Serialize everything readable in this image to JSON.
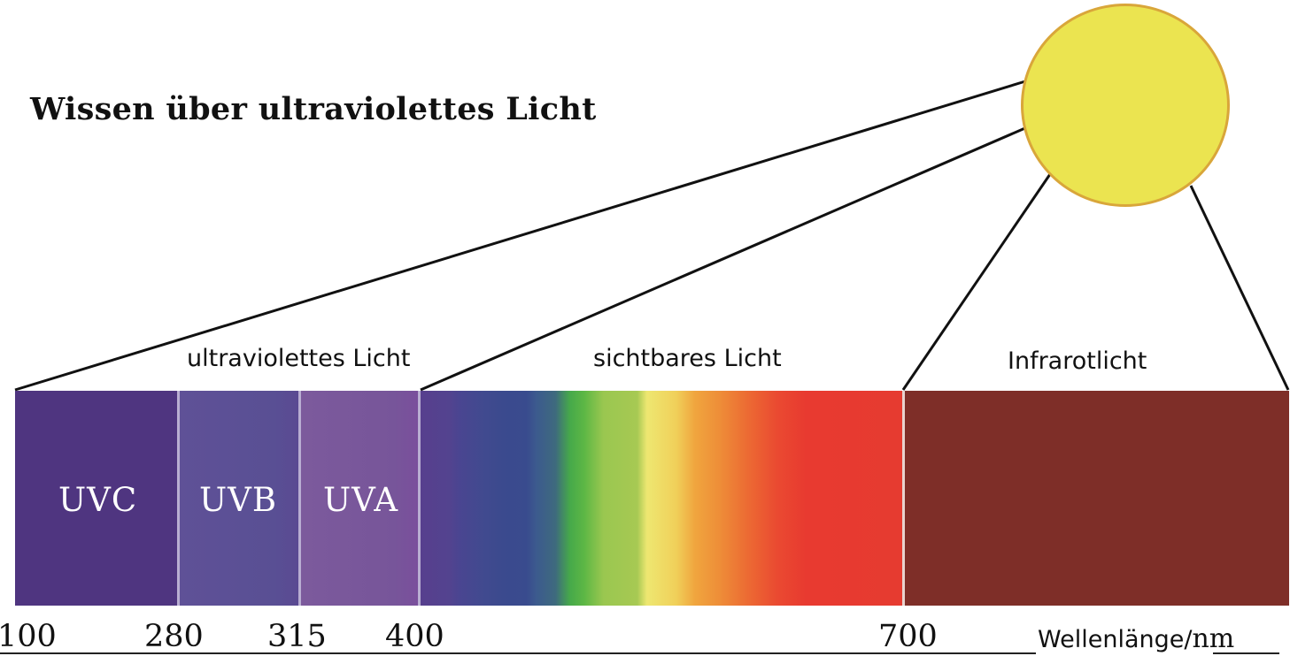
{
  "title": "Wissen über ultraviolettes Licht",
  "regions": {
    "ultraviolet": "ultraviolettes Licht",
    "visible": "sichtbares Licht",
    "infrared": "Infrarotlicht"
  },
  "bands": {
    "uvc": "UVC",
    "uvb": "UVB",
    "uva": "UVA"
  },
  "ticks": {
    "t100": "100",
    "t280": "280",
    "t315": "315",
    "t400": "400",
    "t700": "700"
  },
  "unit": {
    "label": "Wellenlänge/",
    "nm": "nm"
  },
  "colors": {
    "sun_fill": "#ebe450",
    "sun_border": "#d9a63a",
    "uvc": "#4f3580",
    "uvb": "#5f5197",
    "uva": "#7c5a9c",
    "infrared": "#7e2e28"
  }
}
